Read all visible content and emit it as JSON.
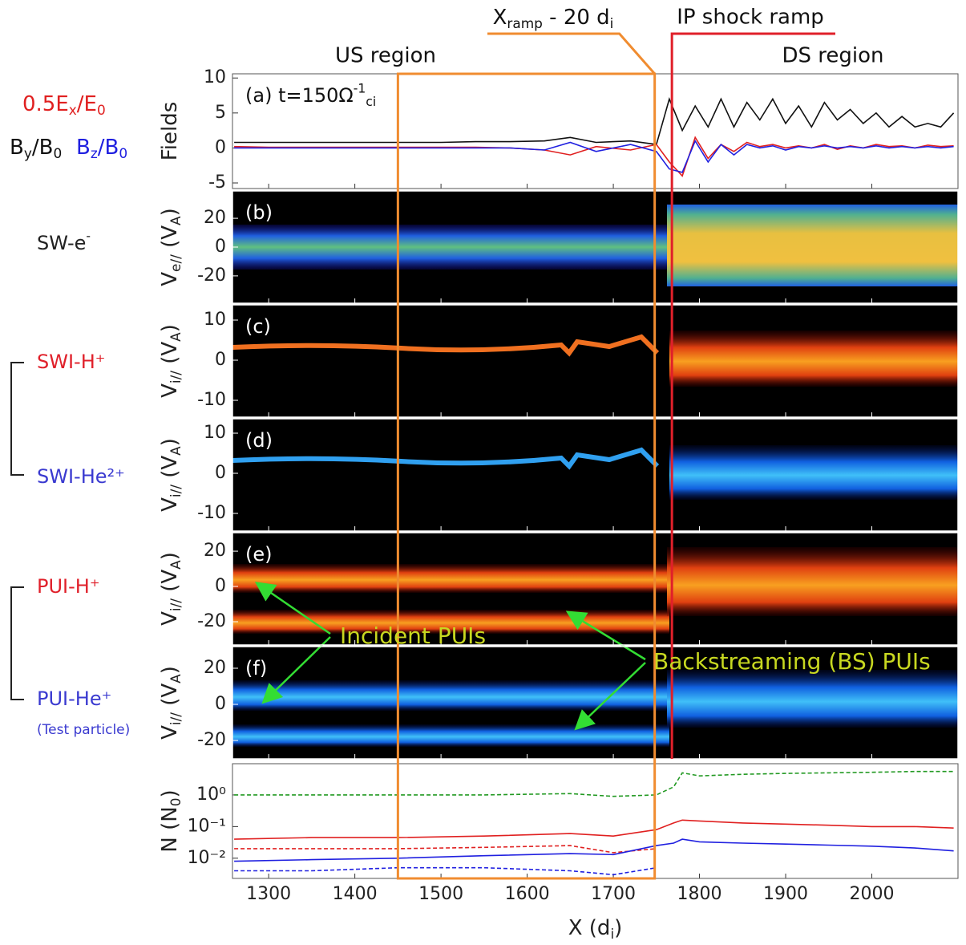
{
  "figure": {
    "us_region": "US region",
    "ds_region": "DS region",
    "x_ramp": [
      {
        "text": "X"
      },
      {
        "text": "ramp",
        "sub": true
      },
      {
        "text": " - 20 d"
      },
      {
        "text": "i",
        "sub": true
      }
    ],
    "shock": "IP shock ramp",
    "us_box_x": [
      1450,
      1748
    ],
    "shock_x": 1768,
    "us_box_color": "#f08c30",
    "shock_color": "#e0202a",
    "ex_label": [
      {
        "text": "0.5E"
      },
      {
        "text": "x",
        "sub": true
      },
      {
        "text": "/E"
      },
      {
        "text": "0",
        "sub": true
      }
    ],
    "by_label": [
      {
        "text": "B"
      },
      {
        "text": "y",
        "sub": true
      },
      {
        "text": "/B"
      },
      {
        "text": "0",
        "sub": true
      }
    ],
    "bz_label": [
      {
        "text": "B"
      },
      {
        "text": "z",
        "sub": true
      },
      {
        "text": "/B"
      },
      {
        "text": "0",
        "sub": true
      }
    ],
    "species": [
      {
        "label": [
          {
            "text": "SW-e"
          },
          {
            "text": "-",
            "sup": true
          }
        ],
        "color": "#222222"
      },
      {
        "label": [
          {
            "text": "SWI-H⁺"
          }
        ],
        "color": "#e0202a"
      },
      {
        "label": [
          {
            "text": "SWI-He²⁺"
          }
        ],
        "color": "#3a3ad0"
      },
      {
        "label": [
          {
            "text": "PUI-H⁺"
          }
        ],
        "color": "#e0202a"
      },
      {
        "label": [
          {
            "text": "PUI-He⁺"
          }
        ],
        "color": "#3a3ad0"
      }
    ],
    "test_particle": "(Test particle)",
    "incident": "Incident PUIs",
    "backstreaming": "Backstreaming (BS) PUIs",
    "annotation_color": "#c8d820"
  },
  "chart_data": [
    {
      "type": "line",
      "panel_label": [
        {
          "text": "(a) t=150Ω"
        },
        {
          "text": "-1",
          "sup": true
        },
        {
          "text": "ci",
          "sub": true
        }
      ],
      "ylabel": [
        {
          "text": "Fields"
        }
      ],
      "ylim": [
        -5.8,
        10.6
      ],
      "yticks": [
        -5,
        0,
        5,
        10
      ],
      "x": [
        1260,
        1300,
        1340,
        1380,
        1420,
        1460,
        1500,
        1540,
        1580,
        1620,
        1650,
        1680,
        1720,
        1750,
        1765,
        1780,
        1795,
        1810,
        1825,
        1840,
        1855,
        1870,
        1885,
        1900,
        1915,
        1930,
        1945,
        1960,
        1975,
        1990,
        2005,
        2020,
        2035,
        2050,
        2065,
        2080,
        2095
      ],
      "series": [
        {
          "color": "#111111",
          "values": [
            0.8,
            0.8,
            0.8,
            0.8,
            0.8,
            0.8,
            0.8,
            0.9,
            0.9,
            1.0,
            1.5,
            0.8,
            1.0,
            0.5,
            7.0,
            2.5,
            6.0,
            3.0,
            7.0,
            3.0,
            6.5,
            4.0,
            7.0,
            3.5,
            6.0,
            3.0,
            6.5,
            4.0,
            5.5,
            3.5,
            5.0,
            3.0,
            4.5,
            3.0,
            3.5,
            3.0,
            5.0
          ]
        },
        {
          "color": "#e02020",
          "values": [
            0.2,
            0.1,
            0.1,
            0.1,
            0.1,
            0.1,
            0.1,
            0.1,
            0.0,
            -0.3,
            -1.0,
            0.2,
            -0.3,
            0.5,
            -2.0,
            -4.0,
            1.5,
            -1.5,
            0.5,
            -0.5,
            0.8,
            0.2,
            0.5,
            0.0,
            0.3,
            0.0,
            0.5,
            -0.2,
            0.3,
            0.0,
            0.5,
            0.2,
            0.3,
            0.0,
            0.4,
            0.2,
            0.3
          ]
        },
        {
          "color": "#2020e0",
          "values": [
            0.0,
            0.0,
            0.0,
            0.0,
            0.0,
            0.0,
            0.0,
            0.0,
            0.0,
            -0.3,
            0.8,
            -0.5,
            0.5,
            -0.5,
            -3.0,
            -3.5,
            1.0,
            -2.0,
            0.5,
            -1.0,
            0.5,
            0.0,
            0.3,
            -0.3,
            0.2,
            0.0,
            0.3,
            0.0,
            0.2,
            0.0,
            0.3,
            0.0,
            0.2,
            0.0,
            0.2,
            0.0,
            0.2
          ]
        }
      ]
    },
    {
      "type": "heatmap",
      "panel_label": [
        {
          "text": "(b)"
        }
      ],
      "ylabel": [
        {
          "text": "V"
        },
        {
          "text": "e//",
          "sub": true
        },
        {
          "text": " (V"
        },
        {
          "text": "A",
          "sub": true
        },
        {
          "text": ")"
        }
      ],
      "ylim": [
        -39,
        39
      ],
      "yticks": [
        -20,
        0,
        20
      ]
    },
    {
      "type": "heatmap",
      "panel_label": [
        {
          "text": "(c)"
        }
      ],
      "ylabel": [
        {
          "text": "V"
        },
        {
          "text": "i//",
          "sub": true
        },
        {
          "text": " (V"
        },
        {
          "text": "A",
          "sub": true
        },
        {
          "text": ")"
        }
      ],
      "ylim": [
        -14.2,
        13.8
      ],
      "yticks": [
        -10,
        0,
        10
      ]
    },
    {
      "type": "heatmap",
      "panel_label": [
        {
          "text": "(d)"
        }
      ],
      "ylabel": [
        {
          "text": "V"
        },
        {
          "text": "i//",
          "sub": true
        },
        {
          "text": " (V"
        },
        {
          "text": "A",
          "sub": true
        },
        {
          "text": ")"
        }
      ],
      "ylim": [
        -14.4,
        13.6
      ],
      "yticks": [
        -10,
        0,
        10
      ]
    },
    {
      "type": "heatmap",
      "panel_label": [
        {
          "text": "(e)"
        }
      ],
      "ylabel": [
        {
          "text": "V"
        },
        {
          "text": "i//",
          "sub": true
        },
        {
          "text": " (V"
        },
        {
          "text": "A",
          "sub": true
        },
        {
          "text": ")"
        }
      ],
      "ylim": [
        -33.2,
        30.5
      ],
      "yticks": [
        -20,
        0,
        20
      ]
    },
    {
      "type": "heatmap",
      "panel_label": [
        {
          "text": "(f)"
        }
      ],
      "ylabel": [
        {
          "text": "V"
        },
        {
          "text": "i//",
          "sub": true
        },
        {
          "text": " (V"
        },
        {
          "text": "A",
          "sub": true
        },
        {
          "text": ")"
        }
      ],
      "ylim": [
        -30.2,
        32
      ],
      "yticks": [
        -20,
        0,
        20
      ]
    },
    {
      "type": "line",
      "log": true,
      "ylabel": [
        {
          "text": "N (N"
        },
        {
          "text": "0",
          "sub": true
        },
        {
          "text": ")"
        }
      ],
      "xlabel": [
        {
          "text": "X (d"
        },
        {
          "text": "i",
          "sub": true
        },
        {
          "text": ")"
        }
      ],
      "xlim": [
        1258,
        2100
      ],
      "xticks": [
        1300,
        1400,
        1500,
        1600,
        1700,
        1800,
        1900,
        2000
      ],
      "ylim": [
        0.0023,
        9.7
      ],
      "yticks": [
        {
          "value": 0.01,
          "label": "10⁻²"
        },
        {
          "value": 0.1,
          "label": "10⁻¹"
        },
        {
          "value": 1,
          "label": "10⁰"
        }
      ],
      "x": [
        1260,
        1350,
        1450,
        1550,
        1650,
        1700,
        1750,
        1770,
        1780,
        1800,
        1850,
        1900,
        1950,
        2000,
        2050,
        2095
      ],
      "series": [
        {
          "color": "#229922",
          "dashed": true,
          "values": [
            1.0,
            1.0,
            1.0,
            1.0,
            1.1,
            0.9,
            1.0,
            1.8,
            5.0,
            4.0,
            4.5,
            4.8,
            5.0,
            5.2,
            5.5,
            5.5
          ]
        },
        {
          "color": "#e02020",
          "values": [
            0.04,
            0.045,
            0.045,
            0.05,
            0.06,
            0.05,
            0.08,
            0.13,
            0.16,
            0.15,
            0.13,
            0.12,
            0.11,
            0.1,
            0.1,
            0.09
          ]
        },
        {
          "color": "#e02020",
          "dashed": true,
          "values": [
            0.02,
            0.02,
            0.02,
            0.022,
            0.025,
            0.015,
            0.02,
            null,
            null,
            null,
            null,
            null,
            null,
            null,
            null,
            null
          ]
        },
        {
          "color": "#2020e0",
          "values": [
            0.008,
            0.009,
            0.01,
            0.012,
            0.014,
            0.013,
            0.025,
            0.03,
            0.04,
            0.033,
            0.03,
            0.028,
            0.026,
            0.024,
            0.021,
            0.017
          ]
        },
        {
          "color": "#2020e0",
          "dashed": true,
          "values": [
            0.004,
            0.004,
            0.005,
            0.005,
            0.004,
            0.003,
            0.005,
            null,
            null,
            null,
            null,
            null,
            null,
            null,
            null,
            null
          ]
        }
      ]
    }
  ]
}
